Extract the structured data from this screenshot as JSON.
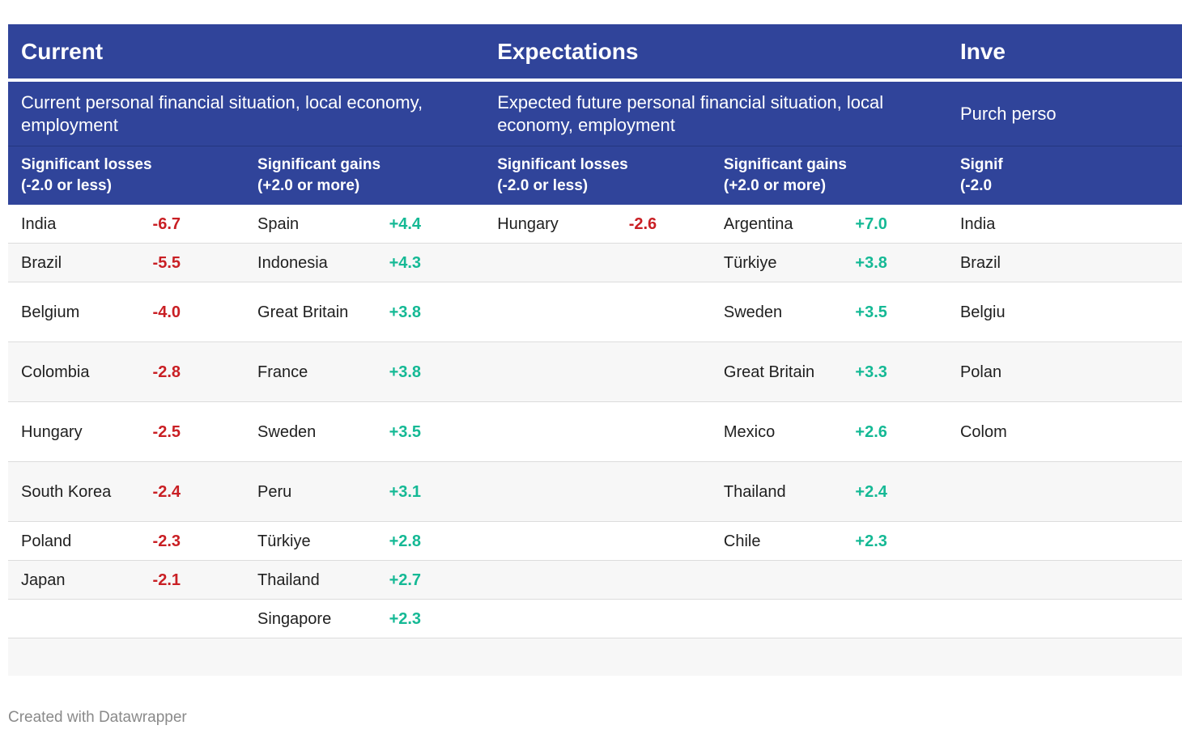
{
  "sections": [
    {
      "title": "Current",
      "description": "Current personal financial situation, local economy, employment"
    },
    {
      "title": "Expectations",
      "description": "Expected future personal financial situation, local economy, employment"
    },
    {
      "title": "Inve",
      "description": "Purch perso"
    }
  ],
  "column_headers": {
    "losses": "Significant losses (-2.0 or less)",
    "gains": "Significant gains (+2.0 or more)",
    "cut": "Signif (-2.0"
  },
  "chart_data": {
    "type": "table",
    "title": "",
    "current": {
      "losses": [
        {
          "country": "India",
          "value": "-6.7"
        },
        {
          "country": "Brazil",
          "value": "-5.5"
        },
        {
          "country": "Belgium",
          "value": "-4.0"
        },
        {
          "country": "Colombia",
          "value": "-2.8"
        },
        {
          "country": "Hungary",
          "value": "-2.5"
        },
        {
          "country": "South Korea",
          "value": "-2.4"
        },
        {
          "country": "Poland",
          "value": "-2.3"
        },
        {
          "country": "Japan",
          "value": "-2.1"
        }
      ],
      "gains": [
        {
          "country": "Spain",
          "value": "+4.4"
        },
        {
          "country": "Indonesia",
          "value": "+4.3"
        },
        {
          "country": "Great Britain",
          "value": "+3.8"
        },
        {
          "country": "France",
          "value": "+3.8"
        },
        {
          "country": "Sweden",
          "value": "+3.5"
        },
        {
          "country": "Peru",
          "value": "+3.1"
        },
        {
          "country": "Türkiye",
          "value": "+2.8"
        },
        {
          "country": "Thailand",
          "value": "+2.7"
        },
        {
          "country": "Singapore",
          "value": "+2.3"
        }
      ]
    },
    "expectations": {
      "losses": [
        {
          "country": "Hungary",
          "value": "-2.6"
        }
      ],
      "gains": [
        {
          "country": "Argentina",
          "value": "+7.0"
        },
        {
          "country": "Türkiye",
          "value": "+3.8"
        },
        {
          "country": "Sweden",
          "value": "+3.5"
        },
        {
          "country": "Great Britain",
          "value": "+3.3"
        },
        {
          "country": "Mexico",
          "value": "+2.6"
        },
        {
          "country": "Thailand",
          "value": "+2.4"
        },
        {
          "country": "Chile",
          "value": "+2.3"
        }
      ]
    },
    "investment_partial": {
      "losses": [
        {
          "country": "India"
        },
        {
          "country": "Brazil"
        },
        {
          "country": "Belgiu"
        },
        {
          "country": "Polan"
        },
        {
          "country": "Colom"
        }
      ]
    }
  },
  "colors": {
    "header": "#30449a",
    "negative": "#c91f24",
    "positive": "#15b995"
  },
  "credit": "Created with Datawrapper"
}
